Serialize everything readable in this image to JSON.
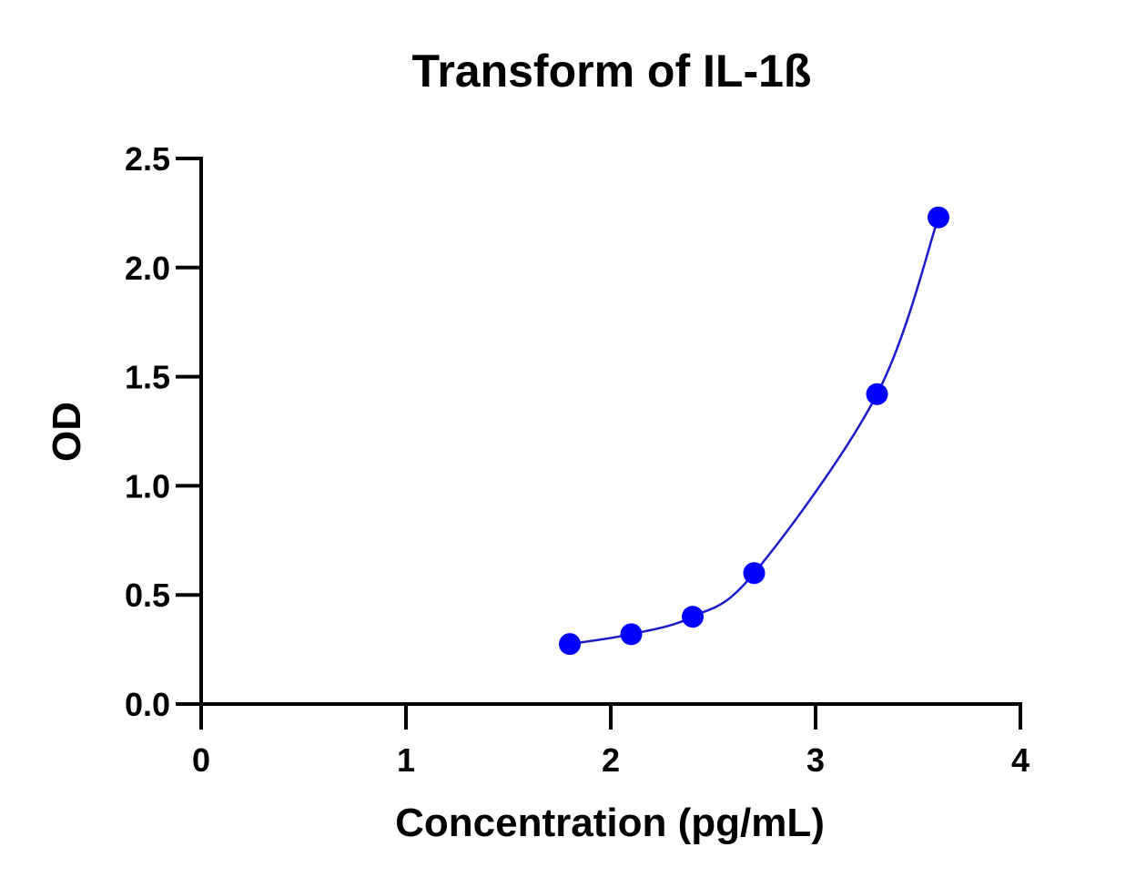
{
  "chart_data": {
    "type": "scatter",
    "title": "Transform of IL-1ß",
    "xlabel": "Concentration (pg/mL)",
    "ylabel": "OD",
    "xlim": [
      0,
      4
    ],
    "ylim": [
      0,
      2.5
    ],
    "xticks": [
      "0",
      "1",
      "2",
      "3",
      "4"
    ],
    "yticks": [
      "0.0",
      "0.5",
      "1.0",
      "1.5",
      "2.0",
      "2.5"
    ],
    "grid": false,
    "series": [
      {
        "points": [
          {
            "x": 1.8,
            "y": 0.275
          },
          {
            "x": 2.1,
            "y": 0.32
          },
          {
            "x": 2.4,
            "y": 0.4
          },
          {
            "x": 2.7,
            "y": 0.6
          },
          {
            "x": 3.3,
            "y": 1.42
          },
          {
            "x": 3.6,
            "y": 2.23
          }
        ],
        "color": "#0000ff",
        "curve_color": "#1a1acc",
        "fit": "smooth curve through points"
      }
    ]
  }
}
